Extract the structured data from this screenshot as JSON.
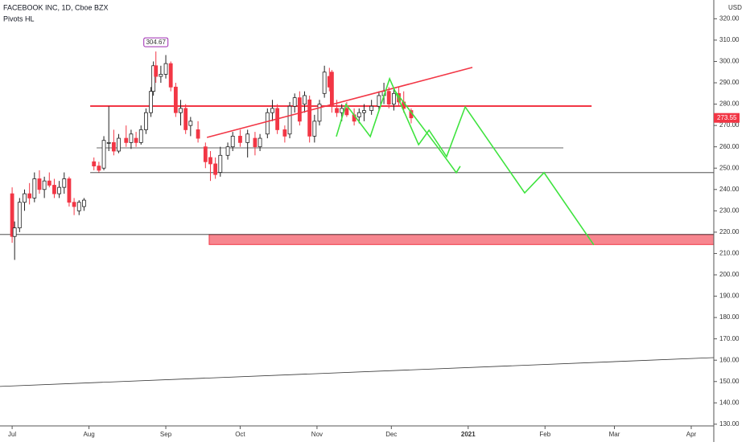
{
  "chart_data": {
    "type": "candlestick",
    "title": "FACEBOOK INC, 1D, Cboe BZX",
    "subtitle": "Pivots HL",
    "currency": "USD",
    "up_color": "#ffffff",
    "down_color": "#f23645",
    "xlim": [
      -4.9,
      283.1
    ],
    "xticks": [
      {
        "value": 0,
        "label": "Jul"
      },
      {
        "value": 31,
        "label": "Aug"
      },
      {
        "value": 62,
        "label": "Sep"
      },
      {
        "value": 92,
        "label": "Oct"
      },
      {
        "value": 123,
        "label": "Nov"
      },
      {
        "value": 153,
        "label": "Dec"
      },
      {
        "value": 184,
        "label": "2021"
      },
      {
        "value": 215,
        "label": "Feb"
      },
      {
        "value": 243,
        "label": "Mar"
      },
      {
        "value": 274,
        "label": "Apr"
      }
    ],
    "ylim": [
      129.2,
      328.8
    ],
    "yticks": [
      {
        "value": 130,
        "label": "130.00"
      },
      {
        "value": 140,
        "label": "140.00"
      },
      {
        "value": 150,
        "label": "150.00"
      },
      {
        "value": 160,
        "label": "160.00"
      },
      {
        "value": 170,
        "label": "170.00"
      },
      {
        "value": 180,
        "label": "180.00"
      },
      {
        "value": 190,
        "label": "190.00"
      },
      {
        "value": 200,
        "label": "200.00"
      },
      {
        "value": 210,
        "label": "210.00"
      },
      {
        "value": 220,
        "label": "220.00"
      },
      {
        "value": 230,
        "label": "230.00"
      },
      {
        "value": 240,
        "label": "240.00"
      },
      {
        "value": 250,
        "label": "250.00"
      },
      {
        "value": 260,
        "label": "260.00"
      },
      {
        "value": 270,
        "label": "270.00"
      },
      {
        "value": 280,
        "label": "280.00"
      },
      {
        "value": 290,
        "label": "290.00"
      },
      {
        "value": 300,
        "label": "300.00"
      },
      {
        "value": 310,
        "label": "310.00"
      },
      {
        "value": 320,
        "label": "320.00"
      }
    ],
    "grid": false,
    "x": [
      0,
      1,
      3,
      5,
      7,
      9,
      11,
      13,
      15,
      17,
      19,
      21,
      23,
      25,
      27,
      29,
      33,
      35,
      37,
      39,
      41,
      43,
      46,
      48,
      50,
      52,
      54,
      56,
      57,
      58,
      60,
      62,
      64,
      66,
      68,
      70,
      72,
      75,
      78,
      80,
      82,
      84,
      87,
      89,
      92,
      95,
      98,
      100,
      103,
      105,
      107,
      110,
      112,
      114,
      116,
      118,
      120,
      122,
      124,
      126,
      128,
      129,
      131,
      133,
      135,
      138,
      140,
      142,
      145,
      148,
      150,
      152,
      154,
      156,
      158,
      161
    ],
    "open": [
      238,
      218,
      222,
      234,
      238,
      236,
      245,
      240,
      244,
      242,
      238,
      241,
      245,
      234,
      230,
      232,
      253,
      251,
      250,
      262,
      262,
      258,
      264,
      262,
      264,
      262,
      268,
      276,
      286,
      298,
      293,
      294,
      299,
      288,
      276,
      278,
      270,
      268,
      260,
      255,
      252,
      248,
      256,
      260,
      265,
      262,
      264,
      260,
      266,
      276,
      278,
      268,
      266,
      279,
      283,
      280,
      282,
      265,
      272,
      285,
      293,
      295,
      278,
      276,
      278,
      275,
      274,
      276,
      277,
      279,
      284,
      286,
      280,
      285,
      281,
      277
    ],
    "high": [
      241,
      225,
      236,
      240,
      243,
      248,
      249,
      246,
      248,
      245,
      244,
      248,
      246,
      236,
      235,
      236,
      255,
      253,
      265,
      279,
      268,
      266,
      270,
      268,
      267,
      270,
      278,
      288,
      300,
      304.67,
      298,
      303,
      300,
      290,
      282,
      280,
      274,
      272,
      262,
      258,
      255,
      260,
      262,
      267,
      268,
      268,
      267,
      266,
      278,
      282,
      280,
      270,
      281,
      285,
      286,
      286,
      284,
      275,
      282,
      298,
      297,
      296,
      282,
      280,
      281,
      278,
      278,
      280,
      282,
      286,
      290,
      288,
      287,
      288,
      286,
      278
    ],
    "low": [
      215,
      207,
      220,
      230,
      233,
      234,
      238,
      236,
      241,
      236,
      236,
      238,
      232,
      228,
      228,
      230,
      249,
      248,
      249,
      258,
      256,
      257,
      260,
      259,
      260,
      261,
      266,
      274,
      284,
      290,
      290,
      292,
      286,
      274,
      270,
      266,
      265,
      262,
      250,
      244,
      245,
      246,
      254,
      258,
      260,
      255,
      256,
      258,
      264,
      272,
      266,
      262,
      264,
      276,
      270,
      276,
      262,
      262,
      270,
      283,
      286,
      276,
      274,
      272,
      274,
      270,
      271,
      272,
      275,
      277,
      280,
      278,
      277,
      279,
      276,
      271
    ],
    "close": [
      218,
      222,
      234,
      238,
      236,
      245,
      240,
      244,
      242,
      238,
      241,
      245,
      234,
      232,
      234,
      235,
      251,
      249,
      263,
      262,
      258,
      264,
      262,
      266,
      262,
      268,
      276,
      286,
      298,
      293,
      294,
      299,
      288,
      276,
      278,
      268,
      272,
      264,
      253,
      252,
      247,
      256,
      260,
      265,
      262,
      266,
      260,
      264,
      276,
      278,
      268,
      265,
      279,
      283,
      272,
      284,
      265,
      272,
      280,
      295,
      288,
      279,
      276,
      278,
      275,
      272,
      276,
      277,
      279,
      284,
      286,
      280,
      285,
      281,
      278,
      273.55
    ],
    "levels": [
      {
        "value": 279.1,
        "from": 31.5,
        "to": 233.8,
        "color": "#f23645"
      },
      {
        "value": 259.5,
        "from": 34.1,
        "to": 222.4,
        "color": "#333333"
      },
      {
        "value": 247.9,
        "from": 31.5,
        "to": 283.1,
        "color": "#333333"
      },
      {
        "value": 218.9,
        "from": -4.9,
        "to": 283.1,
        "color": "#333333"
      }
    ],
    "zones": [
      {
        "low": 214.2,
        "high": 218.9,
        "from": 79.5,
        "to": 283.1,
        "color": "#f23645"
      }
    ],
    "trendlines": [
      {
        "color": "#f23645",
        "x": [
          78.6,
          185.7
        ],
        "y": [
          264.4,
          297.2
        ]
      },
      {
        "color": "#333333",
        "x": [
          -4.9,
          283.1
        ],
        "y": [
          147.7,
          161.2
        ]
      },
      {
        "color": "#3ee33e",
        "x": [
          130.8,
          134.7,
          144.5,
          152.3,
          164.0,
          168.2,
          175.3,
          182.8,
          206.8,
          214.6,
          234.7
        ],
        "y": [
          264.8,
          279.9,
          264.8,
          291.9,
          261.0,
          267.8,
          255.4,
          278.7,
          238.4,
          247.9,
          214.0
        ]
      },
      {
        "color": "#3ee33e",
        "x": [
          154.2,
          172.1,
          179.2,
          180.8
        ],
        "y": [
          286.6,
          259.2,
          247.9,
          250.9
        ]
      }
    ]
  }
}
